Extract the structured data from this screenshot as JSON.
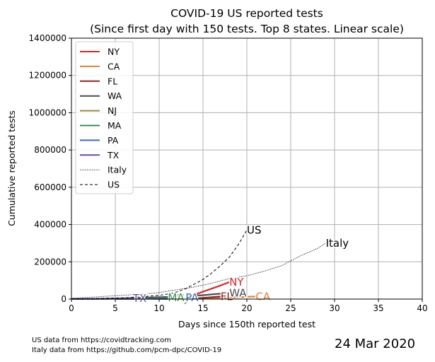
{
  "chart_data": {
    "type": "line",
    "title": "COVID-19 US reported tests",
    "subtitle": "(Since first day with 150 tests. Top 8 states. Linear scale)",
    "xlabel": "Days since 150th reported test",
    "ylabel": "Cumulative reported tests",
    "xlim": [
      0,
      40
    ],
    "ylim": [
      0,
      1400000
    ],
    "xticks": [
      0,
      5,
      10,
      15,
      20,
      25,
      30,
      35,
      40
    ],
    "yticks": [
      0,
      200000,
      400000,
      600000,
      800000,
      1000000,
      1200000,
      1400000
    ],
    "grid": true,
    "legend_position": "top-left",
    "series": [
      {
        "name": "NY",
        "label": "NY",
        "color": "#d62728",
        "style": "solid",
        "x": [
          9,
          10,
          11,
          12,
          13,
          14,
          15,
          16,
          17,
          18
        ],
        "y": [
          2000,
          4000,
          7000,
          10000,
          16000,
          22000,
          40000,
          56000,
          73000,
          91000
        ]
      },
      {
        "name": "CA",
        "label": "CA",
        "color": "#d9833b",
        "style": "solid",
        "x": [
          9,
          11,
          13,
          15,
          16,
          17,
          18,
          19,
          20,
          21
        ],
        "y": [
          300,
          700,
          1500,
          2500,
          4000,
          6000,
          8000,
          10000,
          12000,
          14000
        ]
      },
      {
        "name": "FL",
        "label": "FL",
        "color": "#8b2323",
        "style": "solid",
        "x": [
          10,
          11,
          12,
          13,
          14,
          15,
          16,
          17
        ],
        "y": [
          200,
          500,
          1000,
          2000,
          3500,
          6000,
          10000,
          14000
        ]
      },
      {
        "name": "WA",
        "label": "WA",
        "color": "#4d4d4d",
        "style": "solid",
        "x": [
          0,
          2,
          4,
          6,
          8,
          10,
          12,
          14,
          15,
          16,
          17,
          18
        ],
        "y": [
          200,
          1000,
          2500,
          4500,
          7000,
          10000,
          13000,
          18000,
          21000,
          25000,
          29000,
          33000
        ]
      },
      {
        "name": "NJ",
        "label": "NJ",
        "color": "#9a8a3c",
        "style": "solid",
        "x": [
          10,
          11,
          12
        ],
        "y": [
          200,
          1500,
          3000
        ]
      },
      {
        "name": "MA",
        "label": "MA",
        "color": "#3d8f55",
        "style": "solid",
        "x": [
          5,
          7,
          9,
          10,
          11
        ],
        "y": [
          500,
          1500,
          3000,
          5000,
          7000
        ]
      },
      {
        "name": "PA",
        "label": "PA",
        "color": "#3b6bb0",
        "style": "solid",
        "x": [
          6,
          8,
          10,
          11,
          12,
          13
        ],
        "y": [
          300,
          1000,
          2500,
          4000,
          6000,
          8000
        ]
      },
      {
        "name": "TX",
        "label": "TX",
        "color": "#6c4c9c",
        "style": "solid",
        "x": [
          0,
          2,
          4,
          6,
          7
        ],
        "y": [
          200,
          800,
          1500,
          2500,
          3500
        ]
      },
      {
        "name": "Italy",
        "label": "Italy",
        "color": "#000000",
        "style": "dotted",
        "x": [
          0,
          2,
          4,
          6,
          8,
          10,
          12,
          14,
          16,
          18,
          20,
          22,
          24,
          26,
          28,
          29
        ],
        "y": [
          4000,
          9000,
          15000,
          21000,
          26000,
          35000,
          50000,
          65000,
          85000,
          110000,
          125000,
          150000,
          180000,
          230000,
          270000,
          300000
        ]
      },
      {
        "name": "US",
        "label": "US",
        "color": "#000000",
        "style": "dashed",
        "x": [
          0,
          2,
          4,
          6,
          8,
          10,
          11,
          12,
          13,
          14,
          15,
          16,
          17,
          18,
          19,
          20
        ],
        "y": [
          1000,
          2000,
          4000,
          7000,
          12000,
          20000,
          27000,
          38000,
          55000,
          80000,
          105000,
          140000,
          180000,
          225000,
          290000,
          370000
        ]
      }
    ]
  },
  "footer": {
    "source_us": "US data from https://covidtracking.com",
    "source_italy": "Italy data from https://github.com/pcm-dpc/COVID-19",
    "date": "24 Mar 2020"
  }
}
